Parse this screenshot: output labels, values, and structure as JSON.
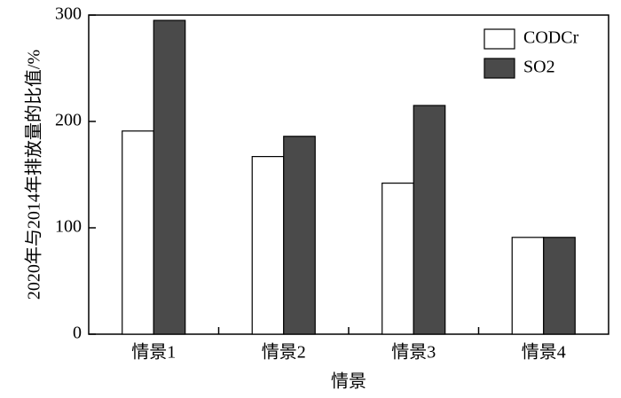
{
  "chart_data": {
    "type": "bar",
    "x_label": "情景",
    "y_label": "2020年与2014年排放量的比值/%",
    "categories": [
      "情景1",
      "情景2",
      "情景3",
      "情景4"
    ],
    "series": [
      {
        "name": "CODCr",
        "color": "#ffffff",
        "values": [
          191,
          167,
          142,
          91
        ]
      },
      {
        "name": "SO2",
        "color": "#4a4a4a",
        "values": [
          295,
          186,
          215,
          91
        ]
      }
    ],
    "ylim": [
      0,
      300
    ],
    "yticks": [
      0,
      100,
      200,
      300
    ],
    "grid": false,
    "legend": "upper right"
  }
}
